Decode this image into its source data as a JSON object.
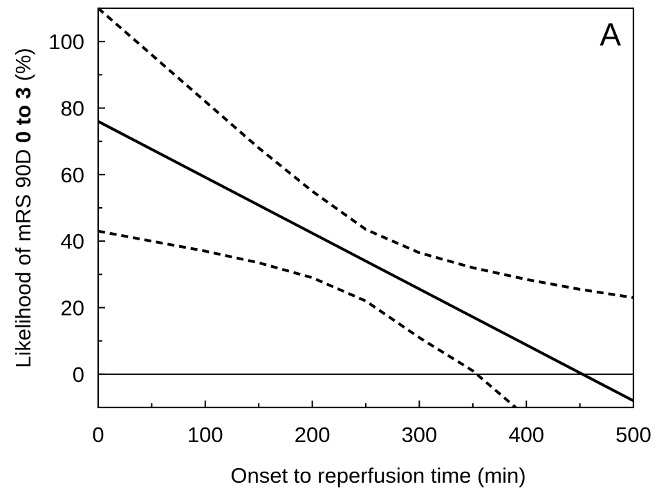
{
  "chart_data": {
    "type": "line",
    "panel_label": "A",
    "xlabel": "Onset to reperfusion time (min)",
    "ylabel_parts": [
      "Likelihood of mRS 90D ",
      "0 to 3",
      " (%)"
    ],
    "xlim": [
      0,
      500
    ],
    "ylim": [
      -10,
      110
    ],
    "xticks": [
      0,
      100,
      200,
      300,
      400,
      500
    ],
    "yticks": [
      0,
      20,
      40,
      60,
      80,
      100
    ],
    "x_minor_step": 50,
    "y_minor_step": 10,
    "reference_line_y": 0,
    "grid": false,
    "series": [
      {
        "style": "solid",
        "x": [
          0,
          500
        ],
        "y": [
          76,
          -8
        ]
      },
      {
        "style": "dashed",
        "x": [
          0,
          50,
          100,
          150,
          200,
          250,
          300,
          350,
          400,
          450,
          500
        ],
        "y": [
          110,
          96,
          82,
          68,
          55,
          43.5,
          36.5,
          32,
          28.5,
          25.5,
          23
        ]
      },
      {
        "style": "dashed",
        "x": [
          0,
          50,
          100,
          150,
          200,
          250,
          300,
          350,
          390
        ],
        "y": [
          43,
          40,
          37,
          33.5,
          29,
          22,
          11,
          1,
          -10
        ]
      }
    ]
  }
}
